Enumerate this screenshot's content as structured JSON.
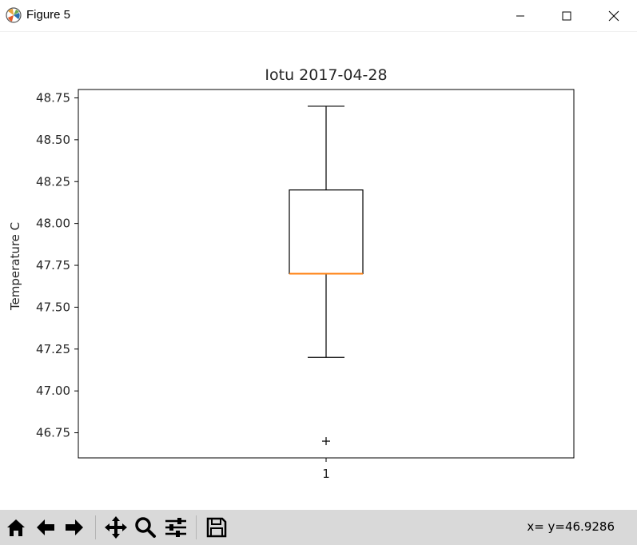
{
  "window": {
    "title": "Figure 5",
    "icons": {
      "app": "matplotlib-icon",
      "minimize": "minimize-icon",
      "maximize": "maximize-icon",
      "close": "close-icon"
    }
  },
  "toolbar": {
    "buttons": [
      {
        "name": "home-button",
        "icon": "home-icon"
      },
      {
        "name": "back-button",
        "icon": "arrow-left-icon"
      },
      {
        "name": "forward-button",
        "icon": "arrow-right-icon"
      },
      {
        "name": "pan-button",
        "icon": "move-icon"
      },
      {
        "name": "zoom-button",
        "icon": "magnifier-icon"
      },
      {
        "name": "subplots-button",
        "icon": "sliders-icon"
      },
      {
        "name": "save-button",
        "icon": "floppy-disk-icon"
      }
    ],
    "status": "x= y=46.9286"
  },
  "chart_data": {
    "type": "box",
    "title": "Iotu 2017-04-28",
    "xlabel": "",
    "ylabel": "Temperature C",
    "ylim": [
      46.6,
      48.8
    ],
    "yticks": [
      "46.75",
      "47.00",
      "47.25",
      "47.50",
      "47.75",
      "48.00",
      "48.25",
      "48.50",
      "48.75"
    ],
    "xticks": [
      "1"
    ],
    "boxes": [
      {
        "position": 1,
        "whisker_low": 47.2,
        "q1": 47.7,
        "median": 47.7,
        "q3": 48.2,
        "whisker_high": 48.7,
        "fliers": [
          46.7
        ]
      }
    ],
    "colors": {
      "box": "#000000",
      "median": "#ff7f0e"
    },
    "grid": false
  }
}
